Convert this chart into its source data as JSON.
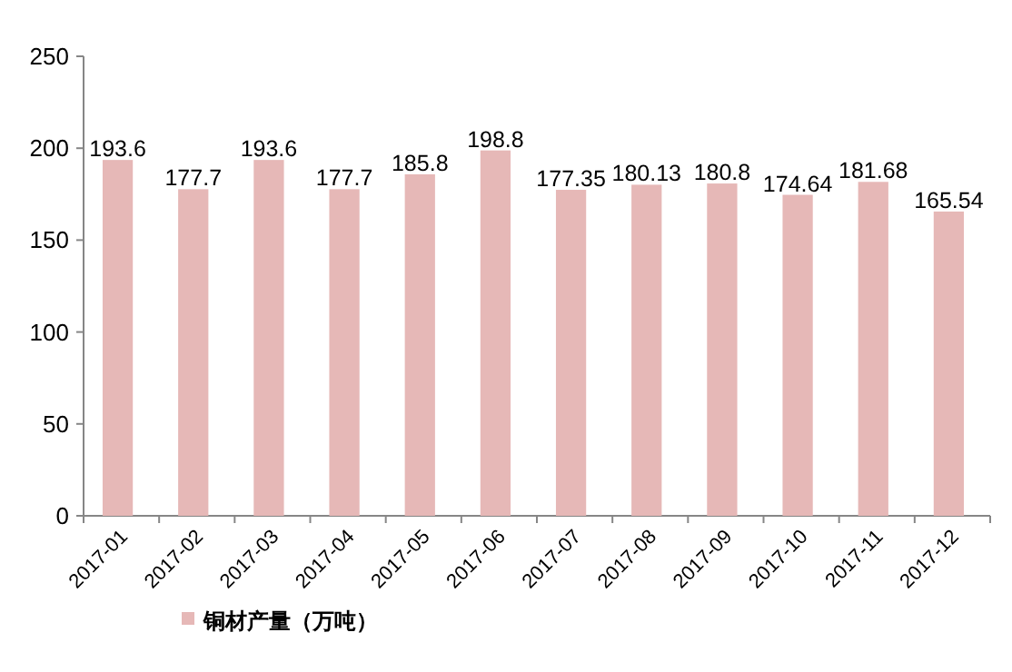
{
  "chart_data": {
    "type": "bar",
    "categories": [
      "2017-01",
      "2017-02",
      "2017-03",
      "2017-04",
      "2017-05",
      "2017-06",
      "2017-07",
      "2017-08",
      "2017-09",
      "2017-10",
      "2017-11",
      "2017-12"
    ],
    "series": [
      {
        "name": "铜材产量（万吨）",
        "color": "#e6b8b7",
        "values": [
          193.6,
          177.7,
          193.6,
          177.7,
          185.8,
          198.8,
          177.35,
          180.13,
          180.8,
          174.64,
          181.68,
          165.54
        ]
      }
    ],
    "ylim": [
      0,
      250
    ],
    "yticks": [
      0,
      50,
      100,
      150,
      200,
      250
    ],
    "data_labels": true,
    "legend": "bottom"
  }
}
